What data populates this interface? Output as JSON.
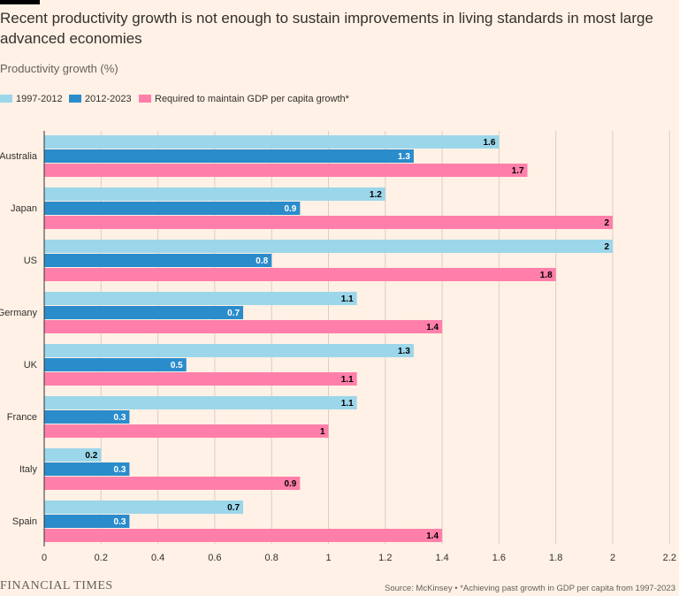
{
  "header": {
    "title": "Recent productivity growth is not enough to sustain improvements in living standards in most large advanced economies",
    "subtitle": "Productivity growth (%)"
  },
  "footer": {
    "brand": "FINANCIAL TIMES",
    "source": "Source: McKinsey • *Achieving past growth in GDP per capita from 1997-2023"
  },
  "colors": {
    "s1": "#9CD6EA",
    "s2": "#2B8CCB",
    "s3": "#FF7FAA",
    "grid": "#DCCEC3",
    "axis": "#33302E",
    "text": "#33302E"
  },
  "chart_data": {
    "type": "bar",
    "orientation": "horizontal",
    "title": "Recent productivity growth is not enough to sustain improvements in living standards in most large advanced economies",
    "ylabel": "Productivity growth (%)",
    "xlim": [
      0,
      2.2
    ],
    "xticks": [
      0,
      0.2,
      0.4,
      0.6,
      0.8,
      1,
      1.2,
      1.4,
      1.6,
      1.8,
      2,
      2.2
    ],
    "grid": true,
    "legend_position": "top-left",
    "categories": [
      "Australia",
      "Japan",
      "US",
      "Germany",
      "UK",
      "France",
      "Italy",
      "Spain"
    ],
    "series": [
      {
        "name": "1997-2012",
        "values": [
          1.6,
          1.2,
          2,
          1.1,
          1.3,
          1.1,
          0.2,
          0.7
        ]
      },
      {
        "name": "2012-2023",
        "values": [
          1.3,
          0.9,
          0.8,
          0.7,
          0.5,
          0.3,
          0.3,
          0.3
        ]
      },
      {
        "name": "Required to maintain GDP per capita growth*",
        "values": [
          1.7,
          2,
          1.8,
          1.4,
          1.1,
          1,
          0.9,
          1.4
        ]
      }
    ]
  }
}
